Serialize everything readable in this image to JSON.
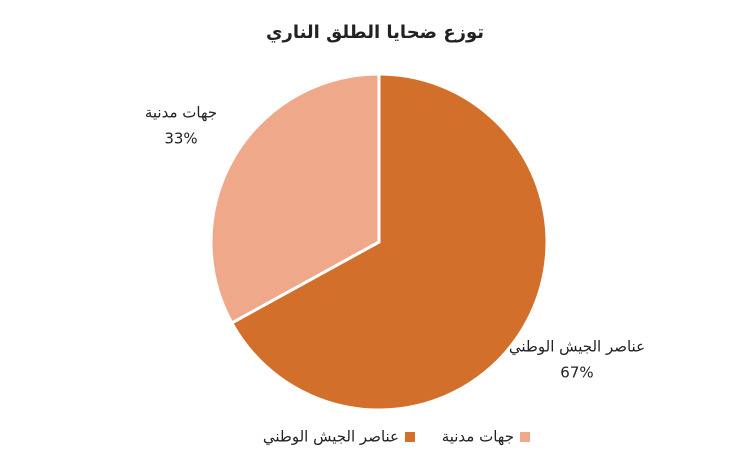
{
  "chart_data": {
    "type": "pie",
    "title": "توزع ضحايا الطلق الناري",
    "categories": [
      "عناصر الجيش الوطني",
      "جهات مدنية"
    ],
    "values": [
      67,
      33
    ],
    "value_labels": [
      "67%",
      "33%"
    ],
    "colors": [
      "#d2702b",
      "#f0a88a"
    ],
    "legend": "bottom"
  }
}
